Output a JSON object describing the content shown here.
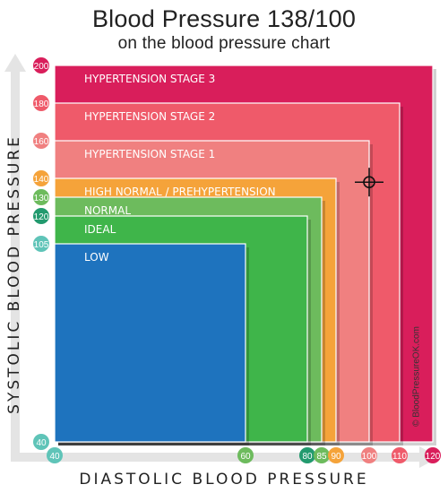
{
  "header": {
    "title": "Blood Pressure 138/100",
    "subtitle": "on the blood pressure chart"
  },
  "watermark": "© BloodPressureOK.com",
  "chart_data": {
    "type": "area",
    "title": "Blood Pressure 138/100",
    "subtitle": "on the blood pressure chart",
    "xlabel": "DIASTOLIC BLOOD PRESSURE",
    "ylabel": "SYSTOLIC BLOOD PRESSURE",
    "x_ticks": [
      40,
      60,
      80,
      85,
      90,
      100,
      110,
      120
    ],
    "y_ticks": [
      40,
      105,
      120,
      130,
      140,
      160,
      180,
      200
    ],
    "zones": [
      {
        "label": "HYPERTENSION STAGE 3",
        "systolic_max": 200,
        "diastolic_max": 120,
        "color": "#d91e5b"
      },
      {
        "label": "HYPERTENSION STAGE 2",
        "systolic_max": 180,
        "diastolic_max": 110,
        "color": "#ef5a6a"
      },
      {
        "label": "HYPERTENSION STAGE 1",
        "systolic_max": 160,
        "diastolic_max": 100,
        "color": "#f08080"
      },
      {
        "label": "HIGH NORMAL / PREHYPERTENSION",
        "systolic_max": 140,
        "diastolic_max": 90,
        "color": "#f5a33a"
      },
      {
        "label": "NORMAL",
        "systolic_max": 130,
        "diastolic_max": 85,
        "color": "#6dbb5d"
      },
      {
        "label": "IDEAL",
        "systolic_max": 120,
        "diastolic_max": 80,
        "color": "#3fb54a"
      },
      {
        "label": "LOW",
        "systolic_max": 105,
        "diastolic_max": 60,
        "color": "#1e73be"
      }
    ],
    "marker": {
      "systolic": 138,
      "diastolic": 100
    },
    "grid": false,
    "legend": "none"
  }
}
